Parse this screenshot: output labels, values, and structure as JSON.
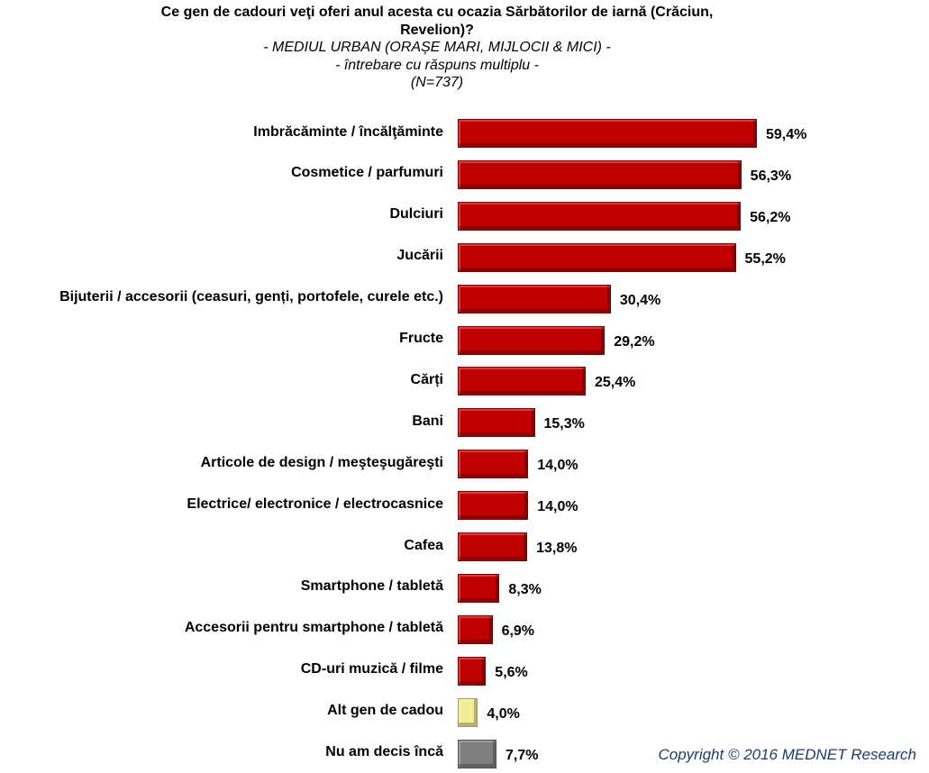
{
  "chart_data": {
    "type": "bar",
    "orientation": "horizontal",
    "title": "Ce gen de cadouri veţi oferi anul acesta cu ocazia Sărbătorilor de iarnă (Crăciun, Revelion)?",
    "subtitles": [
      "- MEDIUL URBAN (ORAȘE MARI, MIJLOCII & MICI) -",
      "- întrebare cu răspuns multiplu -",
      "(N=737)"
    ],
    "categories": [
      "Imbrăcăminte / încălţăminte",
      "Cosmetice / parfumuri",
      "Dulciuri",
      "Jucării",
      "Bijuterii / accesorii (ceasuri, genți, portofele, curele etc.)",
      "Fructe",
      "Cărți",
      "Bani",
      "Articole de design / meşteşugăreşti",
      "Electrice/ electronice / electrocasnice",
      "Cafea",
      "Smartphone / tabletă",
      "Accesorii pentru smartphone / tabletă",
      "CD-uri muzică / filme",
      "Alt gen de cadou",
      "Nu am decis încă"
    ],
    "values": [
      59.4,
      56.3,
      56.2,
      55.2,
      30.4,
      29.2,
      25.4,
      15.3,
      14.0,
      14.0,
      13.8,
      8.3,
      6.9,
      5.6,
      4.0,
      7.7
    ],
    "value_labels": [
      "59,4%",
      "56,3%",
      "56,2%",
      "55,2%",
      "30,4%",
      "29,2%",
      "25,4%",
      "15,3%",
      "14,0%",
      "14,0%",
      "13,8%",
      "8,3%",
      "6,9%",
      "5,6%",
      "4,0%",
      "7,7%"
    ],
    "colors": [
      "#c00000",
      "#c00000",
      "#c00000",
      "#c00000",
      "#c00000",
      "#c00000",
      "#c00000",
      "#c00000",
      "#c00000",
      "#c00000",
      "#c00000",
      "#c00000",
      "#c00000",
      "#c00000",
      "#f2ec94",
      "#7f7f7f"
    ]
  },
  "footer": {
    "copyright": "Copyright ©  2016 MEDNET Research"
  }
}
